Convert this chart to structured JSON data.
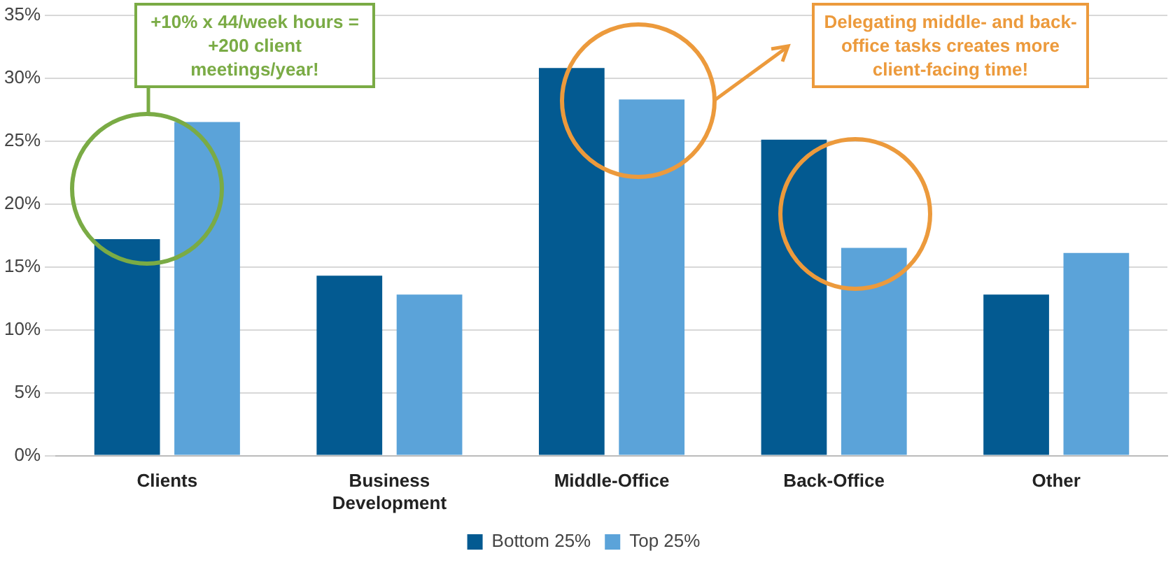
{
  "chart_data": {
    "type": "bar",
    "categories": [
      "Clients",
      "Business Development",
      "Middle-Office",
      "Back-Office",
      "Other"
    ],
    "series": [
      {
        "name": "Bottom 25%",
        "color": "#035a91",
        "values": [
          17.2,
          14.3,
          30.8,
          25.1,
          12.8
        ]
      },
      {
        "name": "Top 25%",
        "color": "#5ba3d9",
        "values": [
          26.5,
          12.8,
          28.3,
          16.5,
          16.1
        ]
      }
    ],
    "ylim": [
      0,
      35
    ],
    "yticks": [
      {
        "value": 0,
        "label": "0%"
      },
      {
        "value": 5,
        "label": "5%"
      },
      {
        "value": 10,
        "label": "10%"
      },
      {
        "value": 15,
        "label": "15%"
      },
      {
        "value": 20,
        "label": "20%"
      },
      {
        "value": 25,
        "label": "25%"
      },
      {
        "value": 30,
        "label": "30%"
      },
      {
        "value": 35,
        "label": "35%"
      }
    ],
    "grid": "y",
    "legend": "bottom",
    "annotations": [
      "+10% x 44/week hours = +200 client meetings/year!",
      "Delegating middle- and back-office tasks creates more client-facing time!"
    ]
  }
}
